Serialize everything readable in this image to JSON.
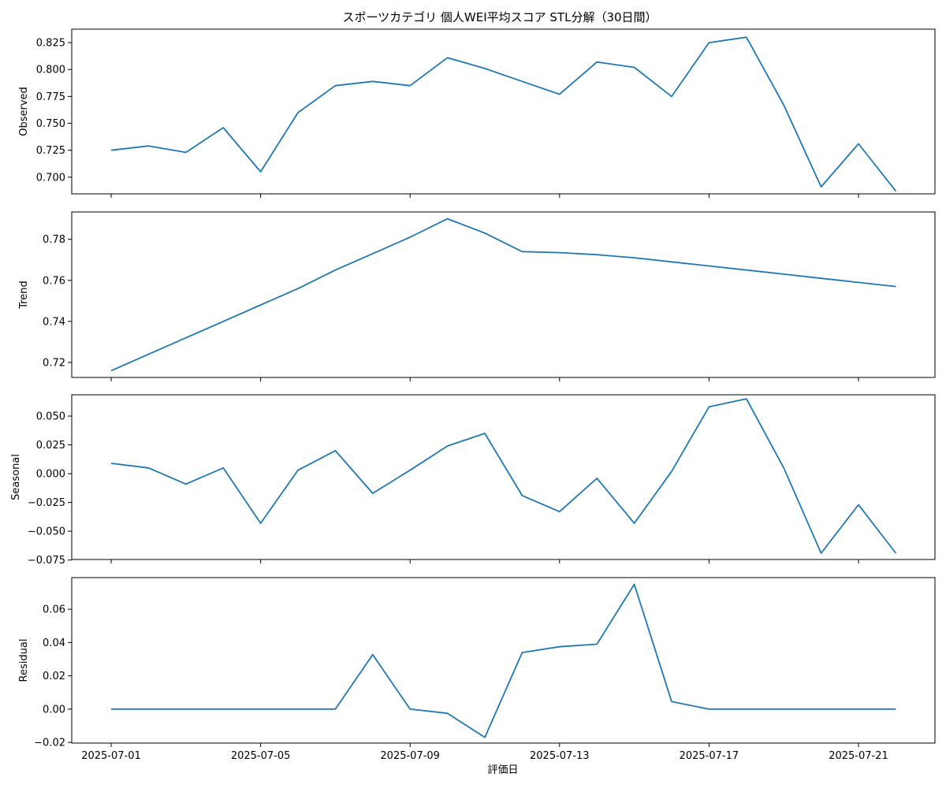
{
  "chart_data": {
    "type": "line",
    "title": "スポーツカテゴリ 個人WEI平均スコア STL分解（30日間）",
    "xlabel": "評価日",
    "line_color": "#1f77b4",
    "x": [
      "2025-07-01",
      "2025-07-02",
      "2025-07-03",
      "2025-07-04",
      "2025-07-05",
      "2025-07-06",
      "2025-07-07",
      "2025-07-08",
      "2025-07-09",
      "2025-07-10",
      "2025-07-11",
      "2025-07-12",
      "2025-07-13",
      "2025-07-14",
      "2025-07-15",
      "2025-07-16",
      "2025-07-17",
      "2025-07-18",
      "2025-07-19",
      "2025-07-20",
      "2025-07-21",
      "2025-07-22"
    ],
    "x_ticks": [
      "2025-07-01",
      "2025-07-05",
      "2025-07-09",
      "2025-07-13",
      "2025-07-17",
      "2025-07-21"
    ],
    "panels": [
      {
        "ylabel": "Observed",
        "ylim": [
          0.6845,
          0.8375
        ],
        "yticks": [
          0.7,
          0.725,
          0.75,
          0.775,
          0.8,
          0.825
        ],
        "ytick_labels": [
          "0.700",
          "0.725",
          "0.750",
          "0.775",
          "0.800",
          "0.825"
        ],
        "values": [
          0.725,
          0.729,
          0.723,
          0.746,
          0.705,
          0.76,
          0.785,
          0.789,
          0.785,
          0.811,
          0.801,
          0.789,
          0.777,
          0.807,
          0.802,
          0.775,
          0.825,
          0.83,
          0.767,
          0.691,
          0.731,
          0.687
        ]
      },
      {
        "ylabel": "Trend",
        "ylim": [
          0.7127,
          0.7933
        ],
        "yticks": [
          0.72,
          0.74,
          0.76,
          0.78
        ],
        "ytick_labels": [
          "0.72",
          "0.74",
          "0.76",
          "0.78"
        ],
        "values": [
          0.716,
          0.724,
          0.732,
          0.74,
          0.748,
          0.756,
          0.765,
          0.773,
          0.781,
          0.79,
          0.783,
          0.774,
          0.7735,
          0.7725,
          0.771,
          0.769,
          0.767,
          0.765,
          0.763,
          0.761,
          0.759,
          0.757
        ]
      },
      {
        "ylabel": "Seasonal",
        "ylim": [
          -0.0745,
          0.0685
        ],
        "yticks": [
          -0.075,
          -0.05,
          -0.025,
          0.0,
          0.025,
          0.05
        ],
        "ytick_labels": [
          "−0.075",
          "−0.050",
          "−0.025",
          "0.000",
          "0.025",
          "0.050"
        ],
        "values": [
          0.009,
          0.005,
          -0.009,
          0.005,
          -0.043,
          0.003,
          0.02,
          -0.017,
          0.003,
          0.024,
          0.035,
          -0.019,
          -0.033,
          -0.004,
          -0.043,
          0.002,
          0.058,
          0.065,
          0.005,
          -0.069,
          -0.027,
          -0.069
        ]
      },
      {
        "ylabel": "Residual",
        "ylim": [
          -0.0204,
          0.079
        ],
        "yticks": [
          -0.02,
          0.0,
          0.02,
          0.04,
          0.06
        ],
        "ytick_labels": [
          "−0.02",
          "0.00",
          "0.02",
          "0.04",
          "0.06"
        ],
        "values": [
          0,
          0,
          0,
          0,
          0,
          0,
          0,
          0.0327,
          0,
          -0.0025,
          -0.017,
          0.034,
          0.0375,
          0.039,
          0.075,
          0.0045,
          0,
          0,
          0,
          0,
          0,
          0
        ]
      }
    ]
  }
}
